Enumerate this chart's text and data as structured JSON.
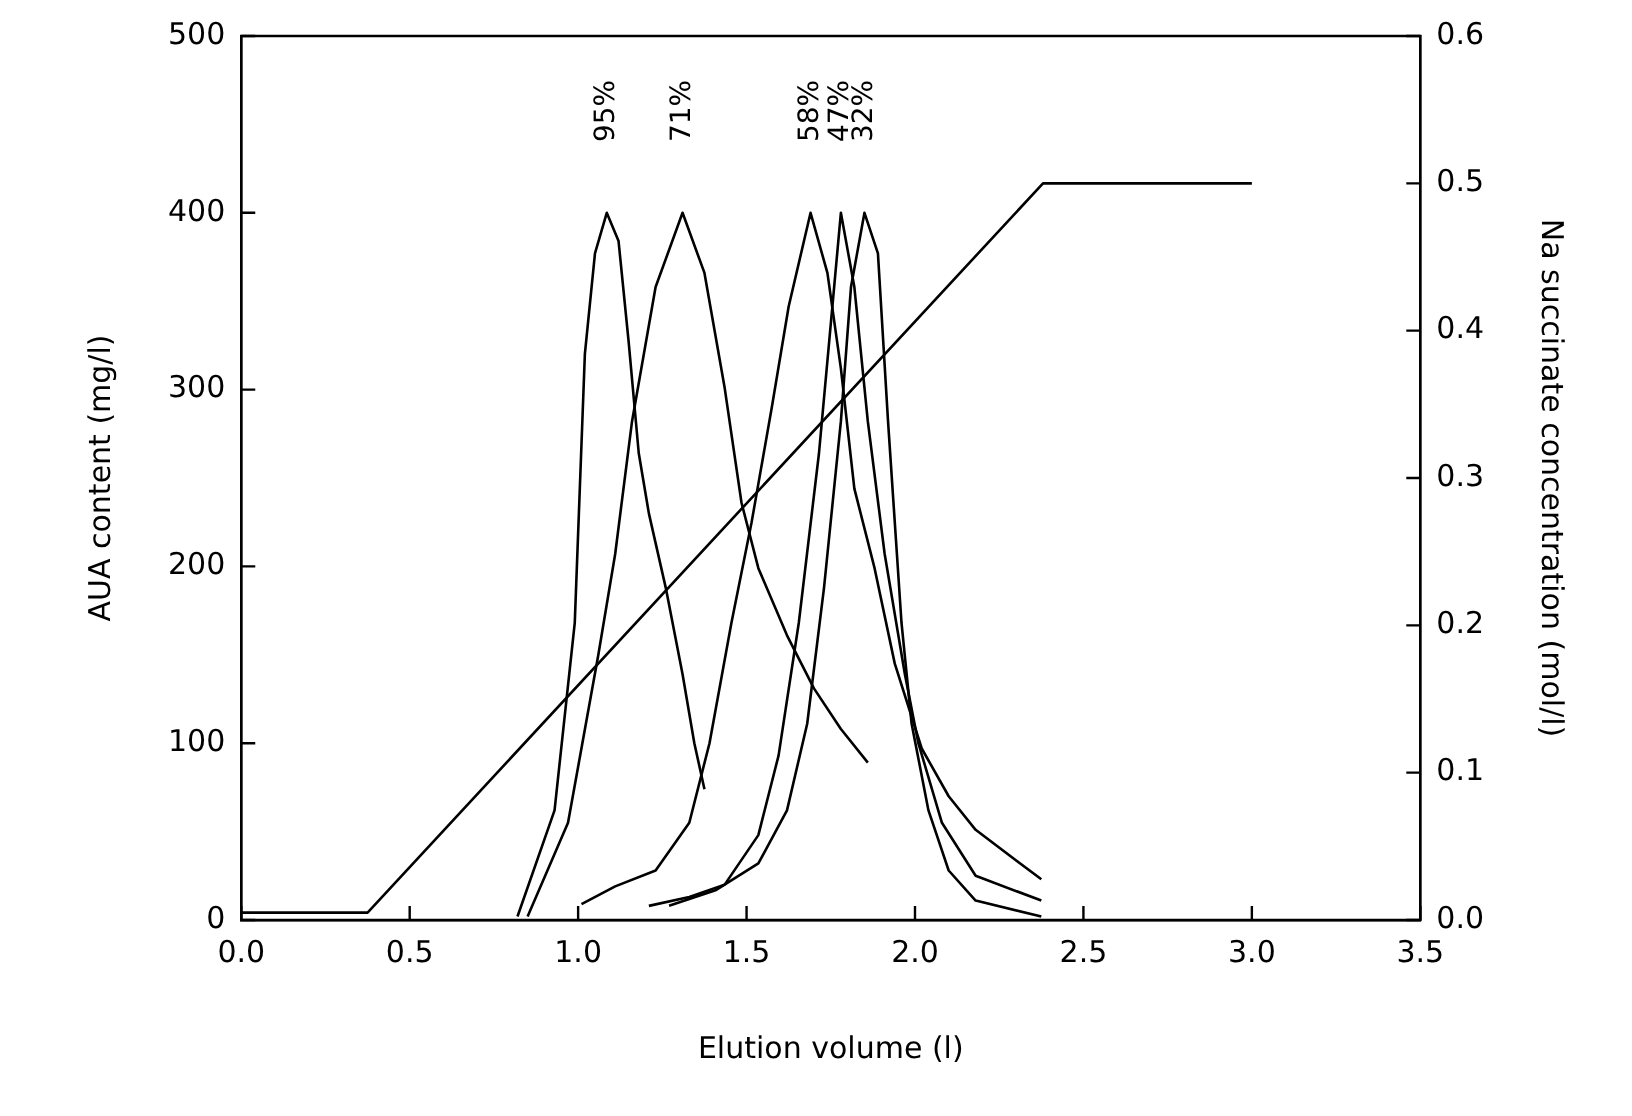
{
  "chart_data": {
    "type": "line",
    "xlabel": "Elution volume (l)",
    "ylabel": "AUA content (mg/l)",
    "y2label": "Na succinate concentration (mol/l)",
    "xlim": [
      0,
      3.5
    ],
    "xticks": [
      {
        "value": 0,
        "label": "0.0"
      },
      {
        "value": 0.5,
        "label": "0.5"
      },
      {
        "value": 1,
        "label": "1.0"
      },
      {
        "value": 1.5,
        "label": "1.5"
      },
      {
        "value": 2,
        "label": "2.0"
      },
      {
        "value": 2.5,
        "label": "2.5"
      },
      {
        "value": 3,
        "label": "3.0"
      },
      {
        "value": 3.5,
        "label": "3.5"
      }
    ],
    "ylim": [
      0,
      500
    ],
    "yticks": [
      0,
      100,
      200,
      300,
      400,
      500
    ],
    "y2lim": [
      0,
      0.6
    ],
    "y2ticks": [
      {
        "value": 0,
        "label": "0.0"
      },
      {
        "value": 0.1,
        "label": "0.1"
      },
      {
        "value": 0.2,
        "label": "0.2"
      },
      {
        "value": 0.3,
        "label": "0.3"
      },
      {
        "value": 0.4,
        "label": "0.4"
      },
      {
        "value": 0.5,
        "label": "0.5"
      },
      {
        "value": 0.6,
        "label": "0.6"
      }
    ],
    "grid": false,
    "legend": false,
    "marker": "none",
    "line_style": "solid",
    "series": [
      {
        "color": "#000000",
        "x": [
          0.82,
          0.93,
          0.99,
          1.02,
          1.05,
          1.085,
          1.12,
          1.15,
          1.18,
          1.21,
          1.26,
          1.31,
          1.345,
          1.375
        ],
        "values": [
          2,
          62,
          168,
          320,
          377,
          400,
          384,
          327,
          264,
          230,
          188,
          139,
          100,
          74
        ]
      },
      {
        "color": "#000000",
        "x": [
          0.85,
          0.97,
          1.06,
          1.11,
          1.16,
          1.23,
          1.31,
          1.375,
          1.435,
          1.485,
          1.535,
          1.62,
          1.7,
          1.78,
          1.86
        ],
        "values": [
          2,
          55,
          150,
          207,
          282,
          358,
          400,
          366,
          301,
          236,
          199,
          161,
          131,
          108,
          89
        ]
      },
      {
        "color": "#000000",
        "x": [
          1.01,
          1.11,
          1.23,
          1.33,
          1.39,
          1.455,
          1.515,
          1.575,
          1.625,
          1.69,
          1.74,
          1.78,
          1.82,
          1.88,
          1.94,
          2.02,
          2.1,
          2.18,
          2.375
        ],
        "values": [
          9,
          19,
          28,
          55,
          100,
          168,
          225,
          290,
          347,
          400,
          366,
          312,
          244,
          199,
          145,
          97,
          70,
          51,
          23
        ]
      },
      {
        "color": "#000000",
        "x": [
          1.21,
          1.33,
          1.435,
          1.535,
          1.595,
          1.655,
          1.715,
          1.76,
          1.78,
          1.82,
          1.86,
          1.91,
          1.97,
          2.01,
          2.08,
          2.18,
          2.375
        ],
        "values": [
          8,
          13,
          20,
          48,
          93,
          168,
          264,
          358,
          400,
          358,
          282,
          207,
          139,
          100,
          55,
          25,
          11
        ]
      },
      {
        "color": "#000000",
        "x": [
          1.27,
          1.41,
          1.535,
          1.62,
          1.68,
          1.73,
          1.78,
          1.81,
          1.85,
          1.89,
          1.92,
          1.96,
          1.99,
          2.04,
          2.1,
          2.18,
          2.375
        ],
        "values": [
          8,
          17,
          32,
          62,
          111,
          188,
          282,
          358,
          400,
          377,
          282,
          168,
          111,
          62,
          28,
          11,
          2
        ]
      },
      {
        "color": "#000000",
        "axis": "y2",
        "x": [
          0,
          0.375,
          2.38,
          3.0
        ],
        "values": [
          0.005,
          0.005,
          0.5,
          0.5
        ]
      }
    ],
    "annotations": [
      "95%",
      "71%",
      "58%",
      "47%",
      "32%"
    ]
  }
}
